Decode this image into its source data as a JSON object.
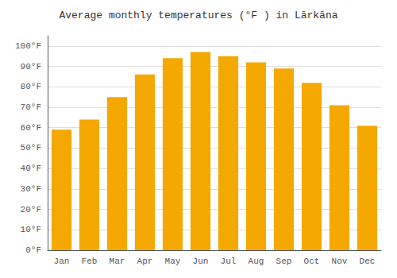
{
  "chart_data": {
    "type": "bar",
    "title": "Average monthly temperatures (°F ) in Lārkāna",
    "categories": [
      "Jan",
      "Feb",
      "Mar",
      "Apr",
      "May",
      "Jun",
      "Jul",
      "Aug",
      "Sep",
      "Oct",
      "Nov",
      "Dec"
    ],
    "values": [
      59,
      64,
      75,
      86,
      94,
      97,
      95,
      92,
      89,
      82,
      71,
      61
    ],
    "color": "#F5A800",
    "ylim": [
      0,
      105
    ],
    "yticks": [
      {
        "value": 0,
        "label": "0°F"
      },
      {
        "value": 10,
        "label": "10°F"
      },
      {
        "value": 20,
        "label": "20°F"
      },
      {
        "value": 30,
        "label": "30°F"
      },
      {
        "value": 40,
        "label": "40°F"
      },
      {
        "value": 50,
        "label": "50°F"
      },
      {
        "value": 60,
        "label": "60°F"
      },
      {
        "value": 70,
        "label": "70°F"
      },
      {
        "value": 80,
        "label": "80°F"
      },
      {
        "value": 90,
        "label": "90°F"
      },
      {
        "value": 100,
        "label": "100°F"
      }
    ],
    "grid": true
  }
}
